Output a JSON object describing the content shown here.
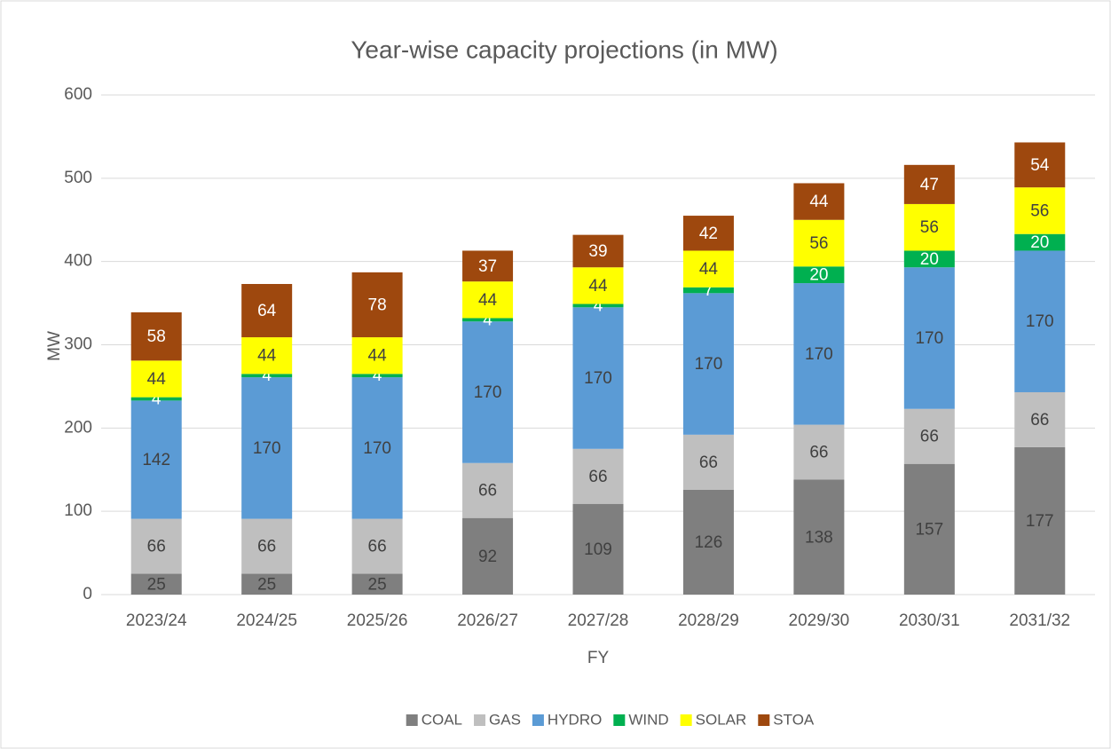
{
  "chart_data": {
    "type": "stacked_bar",
    "title": "Year-wise capacity projections (in MW)",
    "x_label": "FY",
    "y_label": "MW",
    "categories": [
      "2023/24",
      "2024/25",
      "2025/26",
      "2026/27",
      "2027/28",
      "2028/29",
      "2029/30",
      "2030/31",
      "2031/32"
    ],
    "series": [
      {
        "name": "COAL",
        "color": "#7f7f7f",
        "label_color": "#404040",
        "values": [
          25,
          25,
          25,
          92,
          109,
          126,
          138,
          157,
          177
        ]
      },
      {
        "name": "GAS",
        "color": "#bfbfbf",
        "label_color": "#404040",
        "values": [
          66,
          66,
          66,
          66,
          66,
          66,
          66,
          66,
          66
        ]
      },
      {
        "name": "HYDRO",
        "color": "#5b9bd5",
        "label_color": "#404040",
        "values": [
          142,
          170,
          170,
          170,
          170,
          170,
          170,
          170,
          170
        ]
      },
      {
        "name": "WIND",
        "color": "#00b050",
        "label_color": "#ffffff",
        "values": [
          4,
          4,
          4,
          4,
          4,
          7,
          20,
          20,
          20
        ]
      },
      {
        "name": "SOLAR",
        "color": "#ffff00",
        "label_color": "#404040",
        "values": [
          44,
          44,
          44,
          44,
          44,
          44,
          56,
          56,
          56
        ]
      },
      {
        "name": "STOA",
        "color": "#9e480e",
        "label_color": "#ffffff",
        "values": [
          58,
          64,
          78,
          37,
          39,
          42,
          44,
          47,
          54
        ]
      }
    ],
    "ylim": [
      0,
      600
    ],
    "yticks": [
      0,
      100,
      200,
      300,
      400,
      500,
      600
    ],
    "grid": true,
    "legend": "bottom"
  }
}
